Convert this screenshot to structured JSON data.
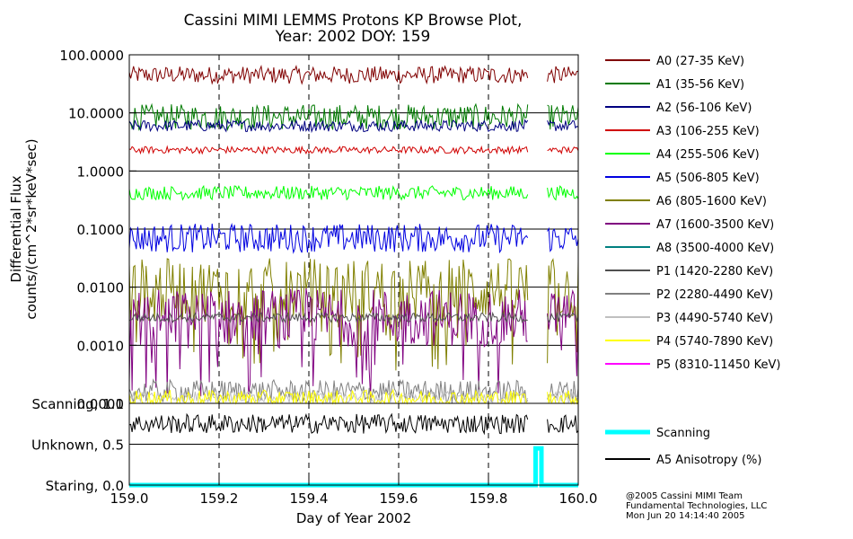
{
  "chart_data": {
    "type": "line",
    "title": "Cassini MIMI LEMMS Protons KP Browse Plot,",
    "subtitle": "Year: 2002 DOY: 159",
    "xlabel": "Day of Year 2002",
    "xlim": [
      159.0,
      160.0
    ],
    "x_ticks": [
      "159.0",
      "159.2",
      "159.4",
      "159.6",
      "159.8",
      "160.0"
    ],
    "flux_panel": {
      "ylabel": "Differential Flux",
      "ylabel2": "counts/(cm^2*sr*keV*sec)",
      "scale": "log",
      "ylim": [
        0.0001,
        100
      ],
      "y_ticks": [
        "100.0000",
        "10.0000",
        "1.0000",
        "0.1000",
        "0.0100",
        "0.0010",
        "0.0001"
      ],
      "grid": true,
      "series": [
        {
          "name": "A0 (27-35 KeV)",
          "color": "#800000",
          "level": 45,
          "spread": 0.15,
          "gaps": [
            [
              0.89,
              0.93
            ]
          ]
        },
        {
          "name": "A1 (35-56 KeV)",
          "color": "#007a00",
          "level": 8.5,
          "spread": 0.22,
          "gaps": [
            [
              0.89,
              0.93
            ]
          ]
        },
        {
          "name": "A2 (56-106 KeV)",
          "color": "#000080",
          "level": 6.0,
          "spread": 0.1,
          "gaps": [
            [
              0.89,
              0.93
            ]
          ]
        },
        {
          "name": "A3 (106-255 KeV)",
          "color": "#d00000",
          "level": 2.3,
          "spread": 0.06,
          "gaps": [
            [
              0.89,
              0.93
            ]
          ]
        },
        {
          "name": "A4 (255-506 KeV)",
          "color": "#00ff00",
          "level": 0.42,
          "spread": 0.12,
          "gaps": [
            [
              0.89,
              0.93
            ]
          ]
        },
        {
          "name": "A5 (506-805 KeV)",
          "color": "#0000e0",
          "level": 0.07,
          "spread": 0.25,
          "gaps": [
            [
              0.89,
              0.93
            ]
          ]
        },
        {
          "name": "A6 (805-1600 KeV)",
          "color": "#808000",
          "level": 0.009,
          "spread": 0.55,
          "gaps": [
            [
              0.89,
              0.93
            ]
          ]
        },
        {
          "name": "A7 (1600-3500 KeV)",
          "color": "#800080",
          "level": 0.003,
          "spread": 0.5,
          "gaps": [
            [
              0.89,
              0.93
            ]
          ]
        },
        {
          "name": "A8 (3500-4000 KeV)",
          "color": "#008080",
          "level": null,
          "spread": 0,
          "gaps": []
        },
        {
          "name": "P1 (1420-2280 KeV)",
          "color": "#505050",
          "level": 0.003,
          "spread": 0.08,
          "gaps": [
            [
              0.89,
              0.93
            ]
          ]
        },
        {
          "name": "P2 (2280-4490 KeV)",
          "color": "#808080",
          "level": 0.00016,
          "spread": 0.2,
          "gaps": [
            [
              0.89,
              0.93
            ]
          ]
        },
        {
          "name": "P3 (4490-5740 KeV)",
          "color": "#c0c0c0",
          "level": 0.00013,
          "spread": 0.1,
          "gaps": [
            [
              0.89,
              0.93
            ]
          ]
        },
        {
          "name": "P4 (5740-7890 KeV)",
          "color": "#ffff00",
          "level": 0.00012,
          "spread": 0.15,
          "gaps": [
            [
              0.89,
              0.93
            ]
          ]
        },
        {
          "name": "P5 (8310-11450 KeV)",
          "color": "#ff00ff",
          "level": null,
          "spread": 0,
          "gaps": []
        }
      ]
    },
    "status_panel": {
      "y_ticks": [
        "Scanning, 1.0",
        "Unknown, 0.5",
        "Staring, 0.0"
      ],
      "ylim": [
        0,
        1
      ],
      "series": [
        {
          "name": "Scanning",
          "color": "#00ffff",
          "points": [
            [
              159.0,
              0
            ],
            [
              159.905,
              0
            ],
            [
              159.905,
              0.45
            ],
            [
              159.918,
              0.45
            ],
            [
              159.918,
              0
            ],
            [
              160.0,
              0
            ]
          ]
        },
        {
          "name": "A5 Anisotropy (%)",
          "color": "#000000",
          "level": 0.75,
          "spread": 0.12
        }
      ]
    },
    "credit": [
      "@2005 Cassini MIMI Team",
      "Fundamental Technologies, LLC",
      "Mon Jun 20 14:14:40 2005"
    ]
  }
}
